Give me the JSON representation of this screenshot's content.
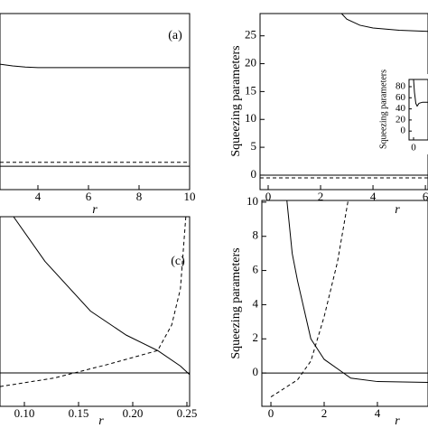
{
  "chart_data": [
    {
      "type": "line",
      "panel_label": "(a)",
      "xlabel": "r",
      "xlim": [
        2.5,
        10
      ],
      "ylim": [
        -2.6,
        29
      ],
      "xticks": [
        4,
        6,
        8,
        10
      ],
      "series": [
        {
          "color": "#000",
          "dash": false,
          "x": [
            2.5,
            3,
            3.5,
            4,
            5,
            10
          ],
          "values": [
            19.9,
            19.6,
            19.4,
            19.3,
            19.3,
            19.3
          ]
        },
        {
          "color": "#000",
          "dash": true,
          "x": [
            2.5,
            10
          ],
          "values": [
            2.3,
            2.3
          ]
        },
        {
          "color": "#000",
          "dash": false,
          "x": [
            2.5,
            10
          ],
          "values": [
            1.6,
            1.6
          ]
        }
      ]
    },
    {
      "type": "line",
      "xlabel": "r",
      "ylabel": "Squeezing parameters",
      "xlim": [
        -0.31,
        6.1
      ],
      "ylim": [
        -2.6,
        29
      ],
      "xticks": [
        0,
        2,
        4,
        6
      ],
      "yticks": [
        0,
        5,
        10,
        15,
        20,
        25
      ],
      "series": [
        {
          "color": "#000",
          "dash": false,
          "x": [
            2.8,
            3,
            3.5,
            4,
            5,
            6.1
          ],
          "values": [
            29,
            28,
            26.9,
            26.4,
            26,
            25.8
          ]
        },
        {
          "color": "#000",
          "dash": false,
          "x": [
            -0.31,
            6.1
          ],
          "values": [
            0,
            0
          ]
        },
        {
          "color": "#000",
          "dash": true,
          "x": [
            -0.31,
            6.1
          ],
          "values": [
            -0.5,
            -0.5
          ]
        }
      ]
    },
    {
      "type": "line",
      "ylabel": "Squeezing parameters",
      "xlim": [
        -1,
        3.2
      ],
      "ylim": [
        -16,
        93
      ],
      "xticks": [
        0
      ],
      "yticks": [
        0,
        20,
        40,
        60,
        80
      ],
      "series": [
        {
          "color": "#000",
          "dash": false,
          "x": [
            0,
            0.2,
            0.5,
            0.8,
            1.2,
            2,
            3.2
          ],
          "values": [
            93,
            70,
            50,
            45,
            50,
            52,
            52
          ]
        }
      ]
    },
    {
      "type": "line",
      "panel_label": "(c)",
      "xlabel": "r",
      "xlim": [
        0.0775,
        0.2525
      ],
      "ylim": [
        -1.95,
        9.1
      ],
      "xticks": [
        {
          "value": 0.1,
          "label": "0.10"
        },
        0.15,
        {
          "value": 0.2,
          "label": "0.20"
        },
        0.25
      ],
      "series": [
        {
          "color": "#000",
          "dash": false,
          "x": [
            0.09,
            0.119,
            0.161,
            0.194,
            0.223,
            0.244,
            0.2525
          ],
          "values": [
            9.1,
            6.5,
            3.6,
            2.2,
            1.3,
            0.4,
            -0.1
          ]
        },
        {
          "color": "#000",
          "dash": true,
          "x": [
            0.0775,
            0.1275,
            0.1775,
            0.223,
            0.236,
            0.244,
            0.249
          ],
          "values": [
            -0.8,
            -0.3,
            0.5,
            1.3,
            2.8,
            4.9,
            9.1
          ]
        },
        {
          "color": "#000",
          "dash": false,
          "x": [
            0.0775,
            0.2525
          ],
          "values": [
            0,
            0
          ]
        }
      ]
    },
    {
      "type": "line",
      "xlabel": "r",
      "ylabel": "Squeezing parameters",
      "xlim": [
        -0.34,
        5.9
      ],
      "ylim": [
        -1.95,
        10.1
      ],
      "xticks": [
        0,
        2,
        4
      ],
      "yticks": [
        0,
        2,
        4,
        6,
        8,
        10
      ],
      "series": [
        {
          "color": "#000",
          "dash": false,
          "x": [
            0.6,
            0.8,
            1,
            1.5,
            2,
            3,
            4,
            5.9
          ],
          "values": [
            10.1,
            7,
            5.4,
            2,
            0.8,
            -0.3,
            -0.5,
            -0.55
          ]
        },
        {
          "color": "#000",
          "dash": true,
          "x": [
            0,
            1,
            1.5,
            2,
            2.5,
            2.9
          ],
          "values": [
            -1.4,
            -0.4,
            0.7,
            3.3,
            6.5,
            10.1
          ]
        },
        {
          "color": "#000",
          "dash": false,
          "x": [
            -0.34,
            5.9
          ],
          "values": [
            0,
            0
          ]
        }
      ]
    }
  ]
}
